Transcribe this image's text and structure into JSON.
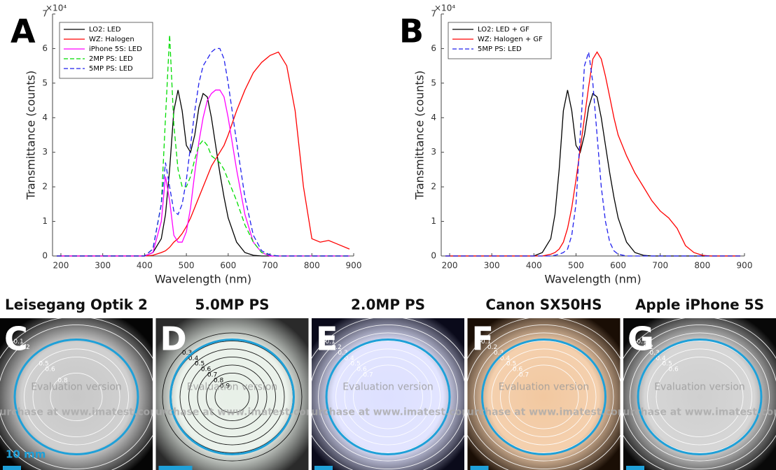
{
  "chart_data": [
    {
      "type": "line",
      "panel_label": "A",
      "xlabel": "Wavelength (nm)",
      "ylabel": "Transmittance (counts)",
      "y_exponent": "×10⁴",
      "xlim": [
        180,
        900
      ],
      "xticks": [
        200,
        300,
        400,
        500,
        600,
        700,
        800,
        900
      ],
      "ylim": [
        0,
        70000
      ],
      "yticks": [
        0,
        {
          "value": 10000,
          "label": "1"
        },
        {
          "value": 20000,
          "label": "2"
        },
        {
          "value": 30000,
          "label": "3"
        },
        {
          "value": 40000,
          "label": "4"
        },
        {
          "value": 50000,
          "label": "5"
        },
        {
          "value": 60000,
          "label": "6"
        },
        {
          "value": 70000,
          "label": "7"
        }
      ],
      "legend": "upper left",
      "x": [
        190,
        400,
        420,
        440,
        450,
        460,
        470,
        480,
        490,
        500,
        510,
        520,
        530,
        540,
        550,
        560,
        570,
        580,
        590,
        600,
        620,
        640,
        660,
        680,
        700,
        720,
        740,
        760,
        780,
        800,
        820,
        840,
        860,
        890
      ],
      "series": [
        {
          "name": "LO2: LED",
          "color": "#000000",
          "style": "solid",
          "values": [
            0,
            0,
            1000,
            5000,
            12000,
            25000,
            42000,
            48000,
            42000,
            32000,
            30000,
            35000,
            43000,
            47000,
            46000,
            40000,
            32000,
            24000,
            17000,
            11000,
            4000,
            1000,
            200,
            0,
            0,
            0,
            0,
            0,
            0,
            0,
            0,
            0,
            0,
            0
          ]
        },
        {
          "name": "WZ: Halogen",
          "color": "#ff0000",
          "style": "solid",
          "values": [
            0,
            0,
            200,
            1000,
            1500,
            2500,
            4000,
            5000,
            6500,
            8500,
            11000,
            14000,
            17000,
            20000,
            23000,
            26000,
            28000,
            30000,
            32000,
            35000,
            42000,
            48000,
            53000,
            56000,
            58000,
            59000,
            55000,
            42000,
            20000,
            5000,
            4000,
            4500,
            3500,
            2000
          ]
        },
        {
          "name": "iPhone 5S: LED",
          "color": "#ff00ff",
          "style": "solid",
          "values": [
            0,
            0,
            1000,
            10000,
            23000,
            16000,
            6000,
            4000,
            4000,
            7000,
            14000,
            24000,
            33000,
            40000,
            45000,
            47000,
            48000,
            48000,
            46000,
            40000,
            25000,
            12000,
            4000,
            1000,
            0,
            0,
            0,
            0,
            0,
            0,
            0,
            0,
            0,
            0
          ]
        },
        {
          "name": "2MP PS: LED",
          "color": "#00dd00",
          "style": "dashed",
          "values": [
            0,
            0,
            2000,
            15000,
            40000,
            64000,
            38000,
            25000,
            20000,
            20000,
            23000,
            28000,
            32000,
            33500,
            32000,
            29000,
            28000,
            27000,
            25000,
            22000,
            16000,
            9000,
            4000,
            1000,
            300,
            0,
            0,
            0,
            0,
            0,
            0,
            0,
            0,
            0
          ]
        },
        {
          "name": "5MP PS: LED",
          "color": "#2020ee",
          "style": "dashed",
          "values": [
            0,
            0,
            2000,
            15000,
            27000,
            20000,
            13000,
            12000,
            15000,
            22000,
            32000,
            42000,
            50000,
            55000,
            57000,
            59000,
            60000,
            60000,
            57000,
            50000,
            33000,
            17000,
            6000,
            1500,
            300,
            0,
            0,
            0,
            0,
            0,
            0,
            0,
            0,
            0
          ]
        }
      ]
    },
    {
      "type": "line",
      "panel_label": "B",
      "xlabel": "Wavelength (nm)",
      "ylabel": "Transmittance (counts)",
      "y_exponent": "×10⁴",
      "xlim": [
        180,
        900
      ],
      "xticks": [
        200,
        300,
        400,
        500,
        600,
        700,
        800,
        900
      ],
      "ylim": [
        0,
        70000
      ],
      "yticks": [
        0,
        {
          "value": 10000,
          "label": "1"
        },
        {
          "value": 20000,
          "label": "2"
        },
        {
          "value": 30000,
          "label": "3"
        },
        {
          "value": 40000,
          "label": "4"
        },
        {
          "value": 50000,
          "label": "5"
        },
        {
          "value": 60000,
          "label": "6"
        },
        {
          "value": 70000,
          "label": "7"
        }
      ],
      "legend": "upper left",
      "x": [
        190,
        400,
        420,
        440,
        450,
        460,
        470,
        480,
        490,
        500,
        510,
        520,
        530,
        540,
        550,
        560,
        570,
        580,
        590,
        600,
        620,
        640,
        660,
        680,
        700,
        720,
        740,
        760,
        780,
        800,
        820,
        840,
        860,
        890
      ],
      "series": [
        {
          "name": "LO2: LED + GF",
          "color": "#000000",
          "style": "solid",
          "values": [
            0,
            0,
            1000,
            5000,
            12000,
            25000,
            42000,
            48000,
            42000,
            32000,
            30000,
            35000,
            43000,
            47000,
            46000,
            40000,
            32000,
            24000,
            17000,
            11000,
            4000,
            1000,
            200,
            0,
            0,
            0,
            0,
            0,
            0,
            0,
            0,
            0,
            0,
            0
          ]
        },
        {
          "name": "WZ: Halogen + GF",
          "color": "#ff0000",
          "style": "solid",
          "values": [
            0,
            0,
            0,
            500,
            1000,
            2000,
            4000,
            8000,
            14000,
            22000,
            31000,
            40000,
            49000,
            57000,
            59000,
            57000,
            52000,
            46000,
            40000,
            35000,
            29000,
            24000,
            20000,
            16000,
            13000,
            11000,
            8000,
            3000,
            1000,
            200,
            0,
            0,
            0,
            0
          ]
        },
        {
          "name": "5MP PS: LED",
          "color": "#2020ee",
          "style": "dashed",
          "values": [
            0,
            0,
            0,
            0,
            200,
            500,
            1000,
            2000,
            6000,
            15000,
            35000,
            55000,
            59000,
            50000,
            35000,
            20000,
            10000,
            4000,
            1500,
            500,
            0,
            0,
            0,
            0,
            0,
            0,
            0,
            0,
            0,
            0,
            0,
            0,
            0,
            0
          ]
        }
      ]
    }
  ],
  "watermark": [
    "Evaluation version",
    "Purchase at www.imatest.com"
  ],
  "panels": [
    {
      "letter": "C",
      "title": "Leisegang Optik 2",
      "contours": [
        0.1,
        0.2,
        0.5,
        0.6,
        0.8
      ],
      "watermark": true,
      "scale_label": "10 mm"
    },
    {
      "letter": "D",
      "title": "5.0MP PS",
      "contours": [
        0.3,
        0.4,
        0.5,
        0.6,
        0.7,
        0.8,
        0.9
      ],
      "watermark": true
    },
    {
      "letter": "E",
      "title": "2.0MP PS",
      "contours": [
        0.1,
        0.2,
        0.3,
        0.4,
        0.5,
        0.6,
        0.7
      ],
      "watermark": true
    },
    {
      "letter": "F",
      "title": "Canon SX50HS",
      "contours": [
        0.1,
        0.2,
        0.3,
        0.4,
        0.5,
        0.6,
        0.7
      ],
      "watermark": true
    },
    {
      "letter": "G",
      "title": "Apple iPhone 5S",
      "contours": [
        0.1,
        0.2,
        0.3,
        0.4,
        0.5,
        0.6
      ],
      "watermark": true
    }
  ]
}
